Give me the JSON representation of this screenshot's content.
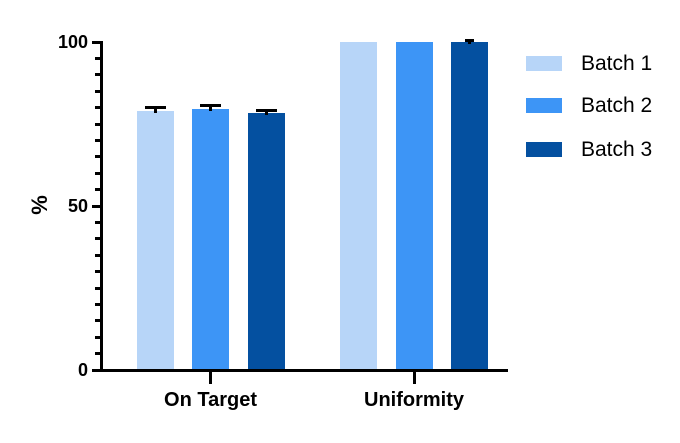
{
  "chart_data": {
    "type": "bar",
    "title": "",
    "xlabel": "",
    "ylabel": "%",
    "ylim": [
      0,
      100
    ],
    "yticks": [
      0,
      50,
      100
    ],
    "minor_tick_step": 5,
    "grid": false,
    "legend_position": "right",
    "axis_color": "#000000",
    "error_bar_color": "#000000",
    "categories": [
      "On Target",
      "Uniformity"
    ],
    "series": [
      {
        "name": "Batch 1",
        "color": "#B7D5F8",
        "values": [
          79.0,
          100
        ],
        "errors": [
          0.9,
          0
        ]
      },
      {
        "name": "Batch 2",
        "color": "#3D95F6",
        "values": [
          79.5,
          100
        ],
        "errors": [
          1.1,
          0
        ]
      },
      {
        "name": "Batch 3",
        "color": "#0450A0",
        "values": [
          78.4,
          100
        ],
        "errors": [
          0.8,
          0.4
        ]
      }
    ]
  }
}
